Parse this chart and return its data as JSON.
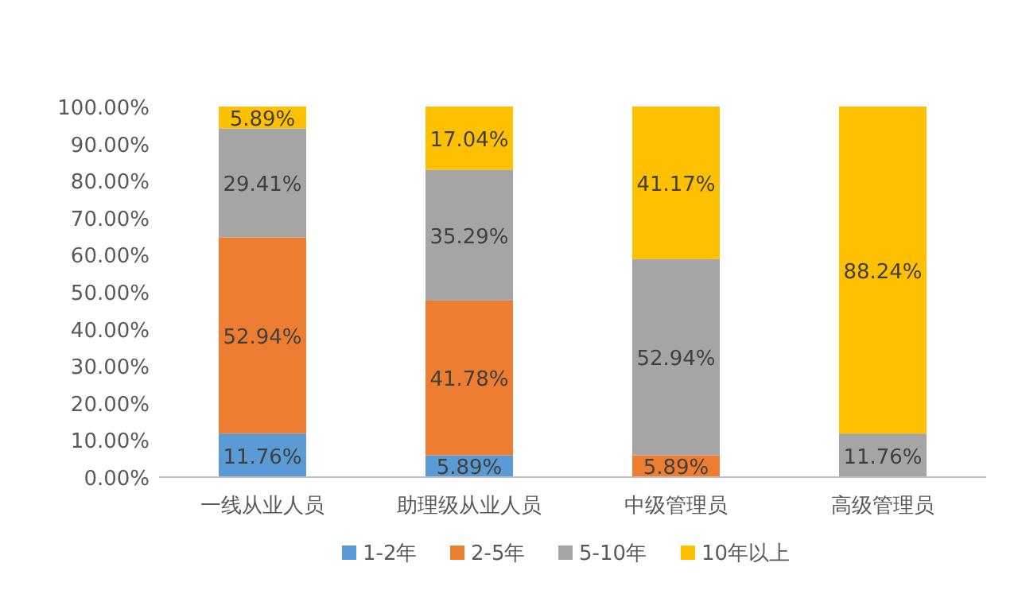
{
  "chart_data": {
    "type": "bar",
    "stacked": true,
    "categories": [
      "一线从业人员",
      "助理级从业人员",
      "中级管理员",
      "高级管理员"
    ],
    "series": [
      {
        "name": "1-2年",
        "color": "#5b9bd5",
        "values": [
          11.76,
          5.89,
          null,
          null
        ],
        "value_labels": [
          "11.76%",
          "5.89%",
          null,
          null
        ]
      },
      {
        "name": "2-5年",
        "color": "#ed7d31",
        "values": [
          52.94,
          41.78,
          5.89,
          null
        ],
        "value_labels": [
          "52.94%",
          "41.78%",
          "5.89%",
          null
        ]
      },
      {
        "name": "5-10年",
        "color": "#a5a5a5",
        "values": [
          29.41,
          35.29,
          52.94,
          11.76
        ],
        "value_labels": [
          "29.41%",
          "35.29%",
          "52.94%",
          "11.76%"
        ]
      },
      {
        "name": "10年以上",
        "color": "#ffc000",
        "values": [
          5.89,
          17.04,
          41.17,
          88.24
        ],
        "value_labels": [
          "5.89%",
          "17.04%",
          "41.17%",
          "88.24%"
        ]
      }
    ],
    "ylim": [
      0,
      100
    ],
    "yticks": [
      {
        "value": 0,
        "label": "0.00%"
      },
      {
        "value": 10,
        "label": "10.00%"
      },
      {
        "value": 20,
        "label": "20.00%"
      },
      {
        "value": 30,
        "label": "30.00%"
      },
      {
        "value": 40,
        "label": "40.00%"
      },
      {
        "value": 50,
        "label": "50.00%"
      },
      {
        "value": 60,
        "label": "60.00%"
      },
      {
        "value": 70,
        "label": "70.00%"
      },
      {
        "value": 80,
        "label": "80.00%"
      },
      {
        "value": 90,
        "label": "90.00%"
      },
      {
        "value": 100,
        "label": "100.00%"
      }
    ],
    "grid": false,
    "legend": "bottom"
  }
}
